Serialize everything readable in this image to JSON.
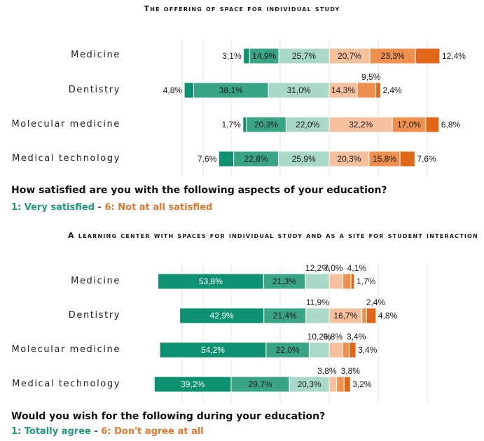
{
  "chart_data": [
    {
      "type": "bar",
      "orientation": "horizontal-diverging",
      "title": "The offering of space for individual study",
      "categories": [
        "Medicine",
        "Dentistry",
        "Molecular medicine",
        "Medical technology"
      ],
      "series": [
        {
          "name": "1",
          "values": [
            3.1,
            4.8,
            1.7,
            7.6
          ]
        },
        {
          "name": "2",
          "values": [
            14.9,
            38.1,
            20.3,
            22.8
          ]
        },
        {
          "name": "3",
          "values": [
            25.7,
            31.0,
            22.0,
            25.9
          ]
        },
        {
          "name": "4",
          "values": [
            20.7,
            14.3,
            32.2,
            20.3
          ]
        },
        {
          "name": "5",
          "values": [
            23.3,
            9.5,
            17.0,
            15.8
          ]
        },
        {
          "name": "6",
          "values": [
            12.4,
            2.4,
            6.8,
            7.6
          ]
        }
      ],
      "value_labels": [
        [
          "3,1%",
          "14,9%",
          "25,7%",
          "20,7%",
          "23,3%",
          "12,4%"
        ],
        [
          "4,8%",
          "38,1%",
          "31,0%",
          "14,3%",
          "9,5%",
          "2,4%"
        ],
        [
          "1,7%",
          "20,3%",
          "22,0%",
          "32,2%",
          "17,0%",
          "6,8%"
        ],
        [
          "7,6%",
          "22,8%",
          "25,9%",
          "20,3%",
          "15,8%",
          "7,6%"
        ]
      ],
      "grid": true
    },
    {
      "type": "bar",
      "orientation": "horizontal-diverging",
      "title": "A learning center with spaces for individual study and as a site for student interaction",
      "categories": [
        "Medicine",
        "Dentistry",
        "Molecular medicine",
        "Medical technology"
      ],
      "series": [
        {
          "name": "1",
          "values": [
            53.8,
            42.9,
            54.2,
            39.2
          ]
        },
        {
          "name": "2",
          "values": [
            21.3,
            21.4,
            22.0,
            29.7
          ]
        },
        {
          "name": "3",
          "values": [
            12.2,
            11.9,
            10.2,
            20.3
          ]
        },
        {
          "name": "4",
          "values": [
            7.0,
            16.7,
            6.8,
            3.8
          ]
        },
        {
          "name": "5",
          "values": [
            4.1,
            2.4,
            3.4,
            3.8
          ]
        },
        {
          "name": "6",
          "values": [
            1.7,
            4.8,
            3.4,
            3.2
          ]
        }
      ],
      "value_labels": [
        [
          "53,8%",
          "21,3%",
          "12,2%",
          "7,0%",
          "4,1%",
          "1,7%"
        ],
        [
          "42,9%",
          "21,4%",
          "11,9%",
          "16,7%",
          "2,4%",
          "4,8%"
        ],
        [
          "54,2%",
          "22,0%",
          "10,2%",
          "6,8%",
          "3,4%",
          "3,4%"
        ],
        [
          "39,2%",
          "29,7%",
          "20,3%",
          "3,8%",
          "3,8%",
          "3,2%"
        ]
      ],
      "grid": true
    }
  ],
  "colors": {
    "level_1": "#0e9170",
    "level_2": "#3aa585",
    "level_3": "#a9d8c6",
    "level_4": "#f6c09e",
    "level_5": "#f0904f",
    "level_6": "#e06618",
    "positive_text": "#1a9c74",
    "negative_text": "#e8762c"
  },
  "question1": {
    "text": "How satisfied are you with the following aspects of your education?",
    "scale_pos": "1: Very satisfied",
    "scale_sep": " - ",
    "scale_neg": "6: Not at all satisfied"
  },
  "question2": {
    "text": "Would you wish for the following during your education?",
    "scale_pos": "1: Totally agree",
    "scale_sep": " - ",
    "scale_neg": "6: Don't agree at all"
  }
}
